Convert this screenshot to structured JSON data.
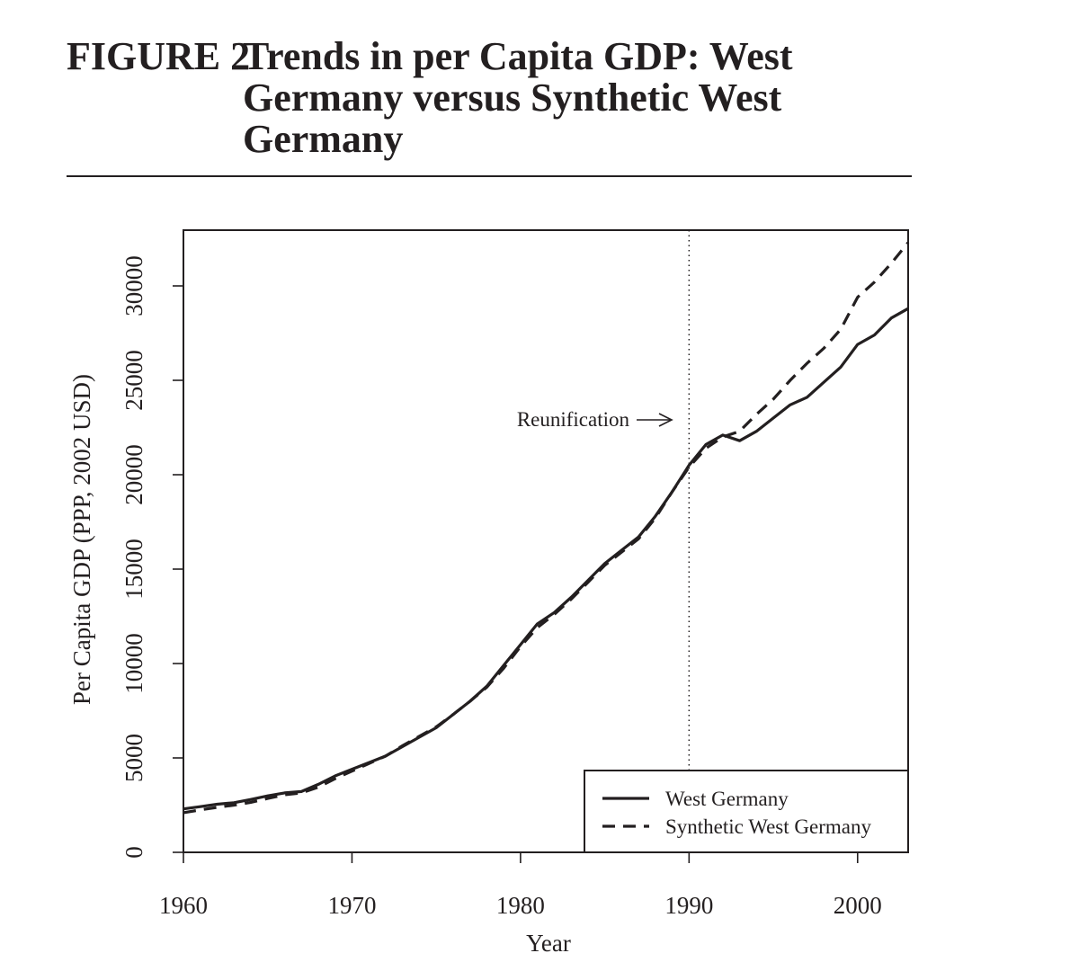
{
  "figure": {
    "label": "FIGURE 2",
    "title": "Trends in per Capita GDP: West Germany versus Synthetic West Germany"
  },
  "chart_data": {
    "type": "line",
    "xlabel": "Year",
    "ylabel": "Per Capita GDP (PPP, 2002 USD)",
    "xlim": [
      1960,
      2003
    ],
    "ylim": [
      0,
      33000
    ],
    "xticks": [
      1960,
      1970,
      1980,
      1990,
      2000
    ],
    "yticks": [
      0,
      5000,
      10000,
      15000,
      20000,
      25000,
      30000
    ],
    "grid": false,
    "legend_position": "bottom-right",
    "annotation": {
      "text": "Reunification",
      "x": 1990
    },
    "series": [
      {
        "name": "West Germany",
        "style": "solid",
        "x": [
          1960,
          1961,
          1962,
          1963,
          1964,
          1965,
          1966,
          1967,
          1968,
          1969,
          1970,
          1971,
          1972,
          1973,
          1974,
          1975,
          1976,
          1977,
          1978,
          1979,
          1980,
          1981,
          1982,
          1983,
          1984,
          1985,
          1986,
          1987,
          1988,
          1989,
          1990,
          1991,
          1992,
          1993,
          1994,
          1995,
          1996,
          1997,
          1998,
          1999,
          2000,
          2001,
          2002,
          2003
        ],
        "values": [
          2300,
          2420,
          2550,
          2630,
          2800,
          2990,
          3150,
          3220,
          3600,
          4050,
          4400,
          4750,
          5100,
          5600,
          6100,
          6600,
          7300,
          8000,
          8800,
          9900,
          11000,
          12100,
          12700,
          13500,
          14400,
          15300,
          16000,
          16700,
          17800,
          19100,
          20500,
          21600,
          22100,
          21800,
          22300,
          23000,
          23700,
          24100,
          24900,
          25700,
          26900,
          27400,
          28300,
          28800
        ]
      },
      {
        "name": "Synthetic West Germany",
        "style": "dashed",
        "x": [
          1960,
          1961,
          1962,
          1963,
          1964,
          1965,
          1966,
          1967,
          1968,
          1969,
          1970,
          1971,
          1972,
          1973,
          1974,
          1975,
          1976,
          1977,
          1978,
          1979,
          1980,
          1981,
          1982,
          1983,
          1984,
          1985,
          1986,
          1987,
          1988,
          1989,
          1990,
          1991,
          1992,
          1993,
          1994,
          1995,
          1996,
          1997,
          1998,
          1999,
          2000,
          2001,
          2002,
          2003
        ],
        "values": [
          2100,
          2250,
          2380,
          2500,
          2650,
          2850,
          3050,
          3150,
          3450,
          3900,
          4300,
          4700,
          5100,
          5650,
          6150,
          6650,
          7300,
          8000,
          8750,
          9750,
          10900,
          11900,
          12600,
          13400,
          14300,
          15200,
          15900,
          16600,
          17700,
          19100,
          20400,
          21400,
          22000,
          22300,
          23200,
          24000,
          25000,
          25900,
          26700,
          27700,
          29400,
          30200,
          31200,
          32300
        ]
      }
    ]
  }
}
